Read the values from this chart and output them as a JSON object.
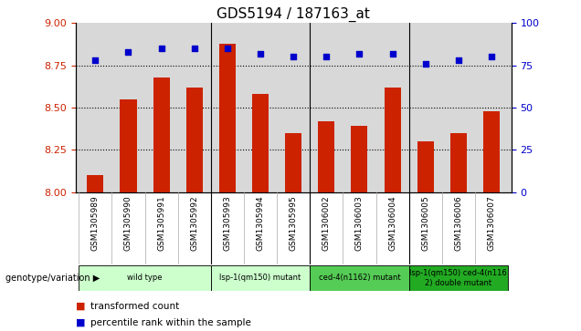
{
  "title": "GDS5194 / 187163_at",
  "samples": [
    "GSM1305989",
    "GSM1305990",
    "GSM1305991",
    "GSM1305992",
    "GSM1305993",
    "GSM1305994",
    "GSM1305995",
    "GSM1306002",
    "GSM1306003",
    "GSM1306004",
    "GSM1306005",
    "GSM1306006",
    "GSM1306007"
  ],
  "bar_values": [
    8.1,
    8.55,
    8.68,
    8.62,
    8.88,
    8.58,
    8.35,
    8.42,
    8.39,
    8.62,
    8.3,
    8.35,
    8.48
  ],
  "dot_values": [
    78,
    83,
    85,
    85,
    85,
    82,
    80,
    80,
    82,
    82,
    76,
    78,
    80
  ],
  "ylim_left": [
    8.0,
    9.0
  ],
  "ylim_right": [
    0,
    100
  ],
  "yticks_left": [
    8.0,
    8.25,
    8.5,
    8.75,
    9.0
  ],
  "yticks_right": [
    0,
    25,
    50,
    75,
    100
  ],
  "bar_color": "#cc2200",
  "dot_color": "#0000cc",
  "grid_vals": [
    8.25,
    8.5,
    8.75
  ],
  "group_bounds": [
    {
      "start": 0,
      "end": 3,
      "label": "wild type",
      "color": "#ccffcc"
    },
    {
      "start": 4,
      "end": 6,
      "label": "lsp-1(qm150) mutant",
      "color": "#ccffcc"
    },
    {
      "start": 7,
      "end": 9,
      "label": "ced-4(n1162) mutant",
      "color": "#55cc55"
    },
    {
      "start": 10,
      "end": 12,
      "label": "lsp-1(qm150) ced-4(n116\n2) double mutant",
      "color": "#22aa22"
    }
  ],
  "genotype_label": "genotype/variation",
  "legend_bar": "transformed count",
  "legend_dot": "percentile rank within the sample",
  "bar_color_legend": "#cc2200",
  "dot_color_legend": "#0000cc",
  "plot_bg": "#d8d8d8",
  "fig_bg": "#ffffff"
}
